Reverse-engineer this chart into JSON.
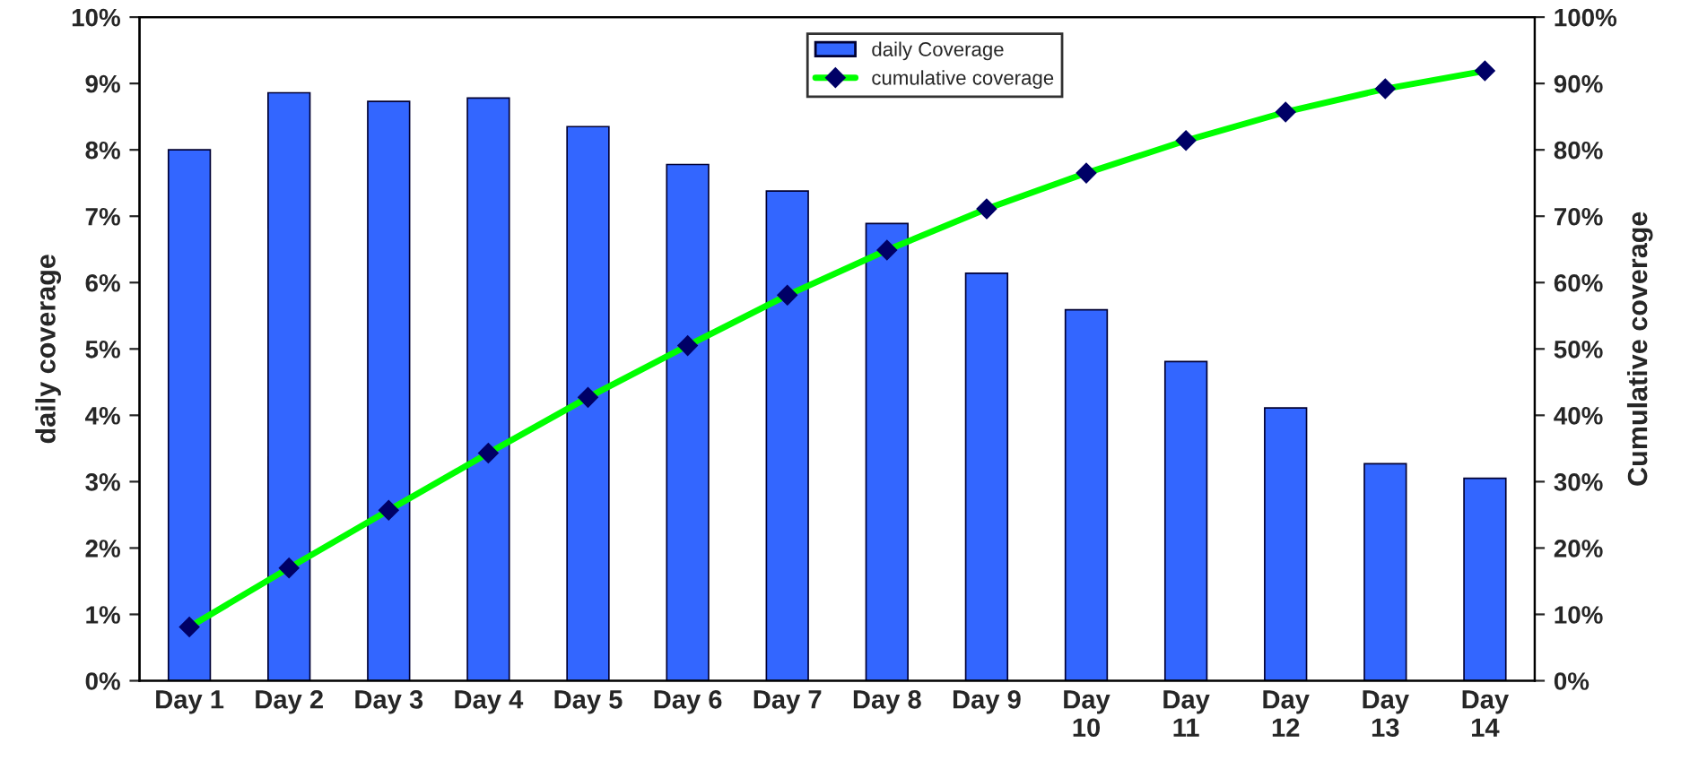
{
  "chart_data": {
    "type": "bar",
    "ylabel": "daily coverage",
    "y2label": "Cumulative coverage",
    "categories": [
      "Day 1",
      "Day 2",
      "Day 3",
      "Day 4",
      "Day 5",
      "Day 6",
      "Day 7",
      "Day 8",
      "Day 9",
      "Day 10",
      "Day 11",
      "Day 12",
      "Day 13",
      "Day 14"
    ],
    "series": [
      {
        "name": "daily Coverage",
        "color": "#3366ff",
        "values": [
          8.0,
          8.86,
          8.73,
          8.78,
          8.35,
          7.78,
          7.38,
          6.89,
          6.14,
          5.59,
          4.81,
          4.11,
          3.27,
          3.05
        ]
      },
      {
        "name": "cumulative coverage",
        "type": "line",
        "axis": "y2",
        "color": "#00ff00",
        "marker": "diamond",
        "line_style": "solid",
        "values": [
          8.1,
          17.0,
          25.7,
          34.3,
          42.7,
          50.5,
          58.1,
          64.9,
          71.1,
          76.5,
          81.4,
          85.7,
          89.2,
          91.9
        ]
      }
    ],
    "ylim": [
      0,
      10
    ],
    "yticks": [
      {
        "value": 0,
        "label": "0%"
      },
      {
        "value": 1,
        "label": "1%"
      },
      {
        "value": 2,
        "label": "2%"
      },
      {
        "value": 3,
        "label": "3%"
      },
      {
        "value": 4,
        "label": "4%"
      },
      {
        "value": 5,
        "label": "5%"
      },
      {
        "value": 6,
        "label": "6%"
      },
      {
        "value": 7,
        "label": "7%"
      },
      {
        "value": 8,
        "label": "8%"
      },
      {
        "value": 9,
        "label": "9%"
      },
      {
        "value": 10,
        "label": "10%"
      }
    ],
    "y2lim": [
      0,
      100
    ],
    "y2ticks": [
      {
        "value": 0,
        "label": "0%"
      },
      {
        "value": 10,
        "label": "10%"
      },
      {
        "value": 20,
        "label": "20%"
      },
      {
        "value": 30,
        "label": "30%"
      },
      {
        "value": 40,
        "label": "40%"
      },
      {
        "value": 50,
        "label": "50%"
      },
      {
        "value": 60,
        "label": "60%"
      },
      {
        "value": 70,
        "label": "70%"
      },
      {
        "value": 80,
        "label": "80%"
      },
      {
        "value": 90,
        "label": "90%"
      },
      {
        "value": 100,
        "label": "100%"
      }
    ],
    "grid": false,
    "legend": "top"
  }
}
